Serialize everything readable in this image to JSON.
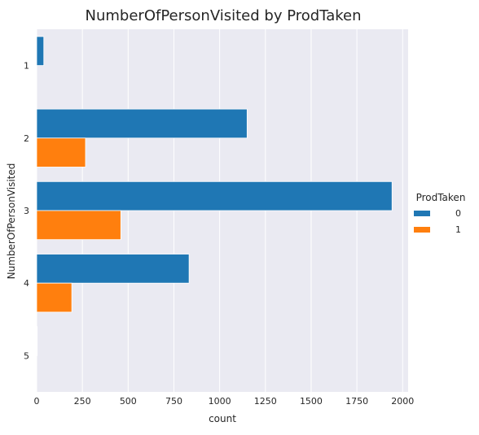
{
  "chart_data": {
    "type": "bar",
    "orientation": "horizontal",
    "title": "NumberOfPersonVisited by ProdTaken",
    "xlabel": "count",
    "ylabel": "NumberOfPersonVisited",
    "categories": [
      "1",
      "2",
      "3",
      "4",
      "5"
    ],
    "xlim": [
      0,
      2030
    ],
    "xticks": [
      0,
      250,
      500,
      750,
      1000,
      1250,
      1500,
      1750,
      2000
    ],
    "grid": true,
    "legend_title": "ProdTaken",
    "legend_position": "right",
    "series": [
      {
        "name": "0",
        "color": "#1f77b4",
        "values": [
          39,
          1150,
          1942,
          833,
          3
        ]
      },
      {
        "name": "1",
        "color": "#ff7f0e",
        "values": [
          0,
          267,
          460,
          192,
          0
        ]
      }
    ]
  }
}
